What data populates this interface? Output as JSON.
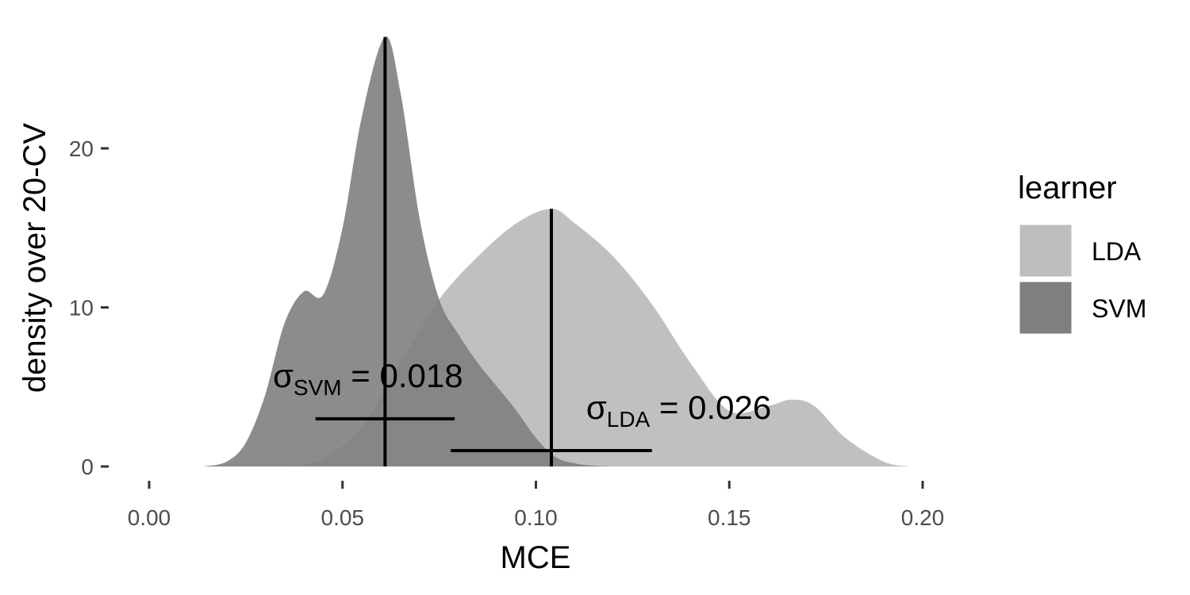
{
  "chart_data": {
    "type": "area",
    "xlabel": "MCE",
    "ylabel": "density over 20-CV",
    "xlim": [
      -0.01,
      0.21
    ],
    "ylim": [
      0,
      27
    ],
    "x_ticks": [
      0.0,
      0.05,
      0.1,
      0.15,
      0.2
    ],
    "x_tick_labels": [
      "0.00",
      "0.05",
      "0.10",
      "0.15",
      "0.20"
    ],
    "y_ticks": [
      0,
      10,
      20
    ],
    "y_tick_labels": [
      "0",
      "10",
      "20"
    ],
    "grid": false,
    "legend": {
      "title": "learner",
      "position": "right",
      "entries": [
        {
          "label": "LDA",
          "color": "#bdbdbd"
        },
        {
          "label": "SVM",
          "color": "#7f7f7f"
        }
      ]
    },
    "series": [
      {
        "name": "LDA",
        "color": "#bdbdbd",
        "mean": 0.104,
        "sd": 0.026,
        "x": [
          0.036,
          0.045,
          0.055,
          0.065,
          0.075,
          0.085,
          0.095,
          0.104,
          0.11,
          0.12,
          0.13,
          0.14,
          0.15,
          0.16,
          0.166,
          0.172,
          0.18,
          0.19,
          0.197
        ],
        "y": [
          0,
          0.5,
          2.5,
          6.5,
          10.5,
          13.2,
          15.3,
          16.2,
          15.3,
          13.2,
          10.2,
          6.5,
          3.5,
          3.8,
          4.2,
          3.8,
          1.8,
          0.3,
          0
        ]
      },
      {
        "name": "SVM",
        "color": "#7f7f7f",
        "mean": 0.061,
        "sd": 0.018,
        "x": [
          0.014,
          0.02,
          0.025,
          0.03,
          0.035,
          0.04,
          0.045,
          0.05,
          0.055,
          0.061,
          0.065,
          0.07,
          0.075,
          0.08,
          0.085,
          0.09,
          0.095,
          0.1,
          0.105,
          0.11,
          0.115,
          0.12
        ],
        "y": [
          0,
          0.3,
          1.5,
          4.5,
          9.0,
          11.0,
          10.8,
          15.0,
          22.0,
          27.0,
          23.5,
          15.5,
          10.5,
          8.3,
          6.5,
          5.0,
          3.5,
          1.8,
          0.6,
          0.2,
          0.05,
          0
        ]
      }
    ],
    "error_bars": [
      {
        "series": "SVM",
        "center": 0.061,
        "sd": 0.018,
        "y": 3.0
      },
      {
        "series": "LDA",
        "center": 0.104,
        "sd": 0.026,
        "y": 1.0
      }
    ],
    "annotations": [
      {
        "series": "SVM",
        "symbol": "σ",
        "subscript": "SVM",
        "text": " = 0.018",
        "x": 0.032,
        "y": 5.0
      },
      {
        "series": "LDA",
        "symbol": "σ",
        "subscript": "LDA",
        "text": " = 0.026",
        "x": 0.113,
        "y": 3.0
      }
    ]
  }
}
